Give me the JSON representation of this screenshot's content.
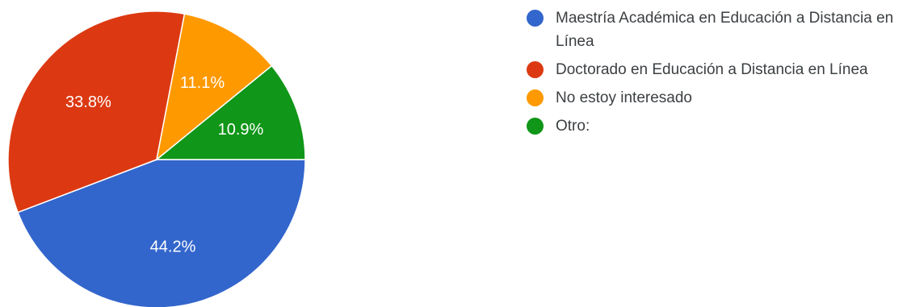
{
  "chart_data": {
    "type": "pie",
    "categories": [
      "Maestría Académica en Educación a Distancia en Línea",
      "Doctorado en Educación a Distancia en Línea",
      "No estoy interesado",
      "Otro:"
    ],
    "values": [
      44.2,
      33.8,
      11.1,
      10.9
    ],
    "labels": [
      "44.2%",
      "33.8%",
      "11.1%",
      "10.9%"
    ],
    "colors": [
      "#3366cc",
      "#dc3912",
      "#ff9900",
      "#109618"
    ],
    "legend_position": "right"
  }
}
